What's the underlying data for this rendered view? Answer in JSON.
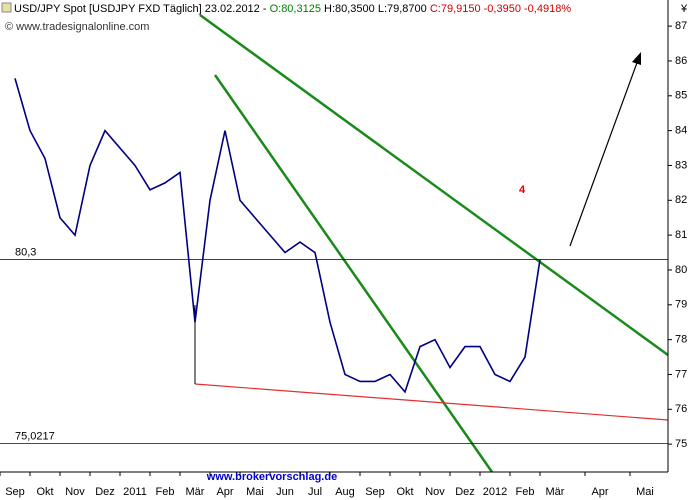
{
  "chart_data": {
    "type": "line",
    "header": [
      {
        "text": "USD/JPY Spot [USDJPY FXD  Täglich] 23.02.2012 - ",
        "color": "#000000"
      },
      {
        "text": "O:80,3125",
        "color": "#008000"
      },
      {
        "text": " H:80,3500 L:79,8700 ",
        "color": "#000000"
      },
      {
        "text": "C:79,9150 -0,3950 -0,4918%",
        "color": "#d00000"
      }
    ],
    "copyright": "© www.tradesignalonline.com",
    "watermark": "www.brokervorschlag.de",
    "annotation": "4",
    "currency": "¥",
    "categories": [
      "Sep",
      null,
      "Okt",
      null,
      "Nov",
      null,
      "Dez",
      null,
      "2011",
      null,
      "Feb",
      null,
      "Mär",
      null,
      "Apr",
      null,
      "Mai",
      null,
      "Jun",
      null,
      "Jul",
      null,
      "Aug",
      null,
      "Sep",
      null,
      "Okt",
      null,
      "Nov",
      null,
      "Dez",
      null,
      "2012",
      null,
      "Feb",
      null,
      "Mär",
      null,
      null,
      "Apr",
      null,
      null,
      "Mai",
      null
    ],
    "values": [
      85.5,
      84.0,
      83.2,
      81.5,
      81.0,
      83.0,
      84.0,
      83.5,
      83.0,
      82.3,
      82.5,
      82.8,
      78.5,
      82.0,
      84.0,
      82.0,
      81.5,
      81.0,
      80.5,
      80.8,
      80.5,
      78.5,
      77.0,
      76.8,
      76.8,
      77.0,
      76.5,
      77.8,
      78.0,
      77.2,
      77.8,
      77.8,
      77.0,
      76.8,
      77.5,
      80.3,
      null,
      null,
      null,
      null,
      null,
      null,
      null,
      null
    ],
    "color": "#000080",
    "levels": [
      {
        "value": 80.3,
        "label": "80,3"
      },
      {
        "value": 75.0217,
        "label": "75,0217"
      }
    ],
    "ylim": [
      74.2,
      87.75
    ],
    "yticks": [
      75,
      76,
      77,
      78,
      79,
      80,
      81,
      82,
      83,
      84,
      85,
      86,
      87
    ]
  }
}
